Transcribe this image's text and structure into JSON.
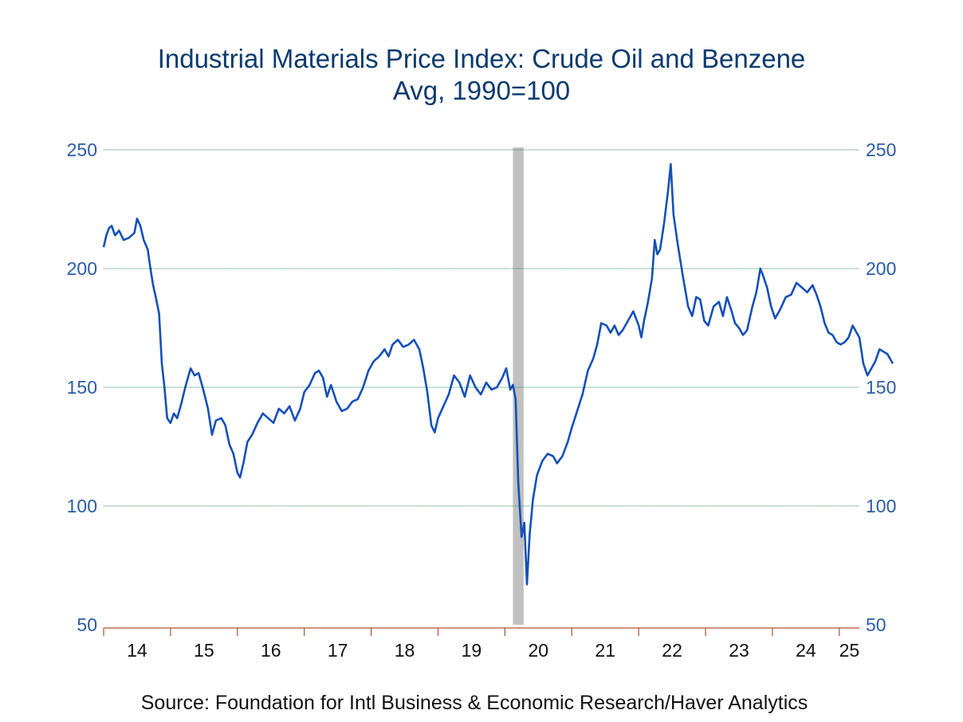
{
  "chart_data": {
    "type": "line",
    "title": "Industrial Materials Price Index: Crude Oil and Benzene",
    "subtitle": "Avg, 1990=100",
    "source": "Source:  Foundation for Intl Business & Economic Research/Haver Analytics",
    "xlabel": "",
    "ylabel": "",
    "xlim": [
      2014.0,
      2025.3
    ],
    "ylim": [
      50,
      250
    ],
    "y_ticks": [
      50,
      100,
      150,
      200,
      250
    ],
    "y_tick_labels": [
      "50",
      "100",
      "150",
      "200",
      "250"
    ],
    "x_tick_labels": [
      "14",
      "15",
      "16",
      "17",
      "18",
      "19",
      "20",
      "21",
      "22",
      "23",
      "24",
      "25"
    ],
    "grid": "horizontal dotted, green",
    "dual_y_axis": true,
    "recession_shading": [
      {
        "start": 2020.12,
        "end": 2020.28
      }
    ],
    "colors": {
      "line": "#1450b8",
      "grid": "#2e8b57",
      "axis": "#b5502a",
      "shade": "#c0c0c0",
      "title": "#0b3a6e",
      "ticks": "#2a5ca8"
    },
    "series": [
      {
        "points": [
          [
            2014.0,
            209
          ],
          [
            2014.04,
            214
          ],
          [
            2014.08,
            217
          ],
          [
            2014.12,
            218
          ],
          [
            2014.17,
            214
          ],
          [
            2014.23,
            216
          ],
          [
            2014.3,
            212
          ],
          [
            2014.38,
            213
          ],
          [
            2014.46,
            215
          ],
          [
            2014.5,
            221
          ],
          [
            2014.55,
            218
          ],
          [
            2014.6,
            212
          ],
          [
            2014.66,
            208
          ],
          [
            2014.7,
            200
          ],
          [
            2014.74,
            193
          ],
          [
            2014.78,
            188
          ],
          [
            2014.83,
            181
          ],
          [
            2014.87,
            160
          ],
          [
            2014.91,
            150
          ],
          [
            2014.95,
            137
          ],
          [
            2015.0,
            135
          ],
          [
            2015.05,
            139
          ],
          [
            2015.1,
            137
          ],
          [
            2015.16,
            143
          ],
          [
            2015.22,
            150
          ],
          [
            2015.3,
            158
          ],
          [
            2015.36,
            155
          ],
          [
            2015.42,
            156
          ],
          [
            2015.48,
            150
          ],
          [
            2015.56,
            141
          ],
          [
            2015.62,
            130
          ],
          [
            2015.68,
            136
          ],
          [
            2015.76,
            137
          ],
          [
            2015.82,
            134
          ],
          [
            2015.88,
            126
          ],
          [
            2015.94,
            122
          ],
          [
            2016.0,
            114
          ],
          [
            2016.04,
            112
          ],
          [
            2016.09,
            118
          ],
          [
            2016.15,
            127
          ],
          [
            2016.22,
            130
          ],
          [
            2016.3,
            135
          ],
          [
            2016.38,
            139
          ],
          [
            2016.46,
            137
          ],
          [
            2016.54,
            135
          ],
          [
            2016.62,
            141
          ],
          [
            2016.7,
            139
          ],
          [
            2016.78,
            142
          ],
          [
            2016.86,
            136
          ],
          [
            2016.94,
            141
          ],
          [
            2017.0,
            148
          ],
          [
            2017.08,
            151
          ],
          [
            2017.16,
            156
          ],
          [
            2017.22,
            157
          ],
          [
            2017.28,
            154
          ],
          [
            2017.34,
            146
          ],
          [
            2017.4,
            151
          ],
          [
            2017.48,
            144
          ],
          [
            2017.56,
            140
          ],
          [
            2017.64,
            141
          ],
          [
            2017.72,
            144
          ],
          [
            2017.8,
            145
          ],
          [
            2017.88,
            150
          ],
          [
            2017.96,
            157
          ],
          [
            2018.04,
            161
          ],
          [
            2018.12,
            163
          ],
          [
            2018.2,
            166
          ],
          [
            2018.26,
            163
          ],
          [
            2018.32,
            168
          ],
          [
            2018.4,
            170
          ],
          [
            2018.48,
            167
          ],
          [
            2018.56,
            168
          ],
          [
            2018.64,
            170
          ],
          [
            2018.72,
            166
          ],
          [
            2018.78,
            158
          ],
          [
            2018.84,
            148
          ],
          [
            2018.9,
            134
          ],
          [
            2018.95,
            131
          ],
          [
            2019.0,
            137
          ],
          [
            2019.08,
            142
          ],
          [
            2019.16,
            147
          ],
          [
            2019.24,
            155
          ],
          [
            2019.32,
            152
          ],
          [
            2019.4,
            146
          ],
          [
            2019.48,
            155
          ],
          [
            2019.56,
            150
          ],
          [
            2019.64,
            147
          ],
          [
            2019.72,
            152
          ],
          [
            2019.8,
            149
          ],
          [
            2019.88,
            150
          ],
          [
            2019.96,
            154
          ],
          [
            2020.02,
            158
          ],
          [
            2020.08,
            149
          ],
          [
            2020.12,
            151
          ],
          [
            2020.16,
            145
          ],
          [
            2020.2,
            110
          ],
          [
            2020.25,
            87
          ],
          [
            2020.29,
            93
          ],
          [
            2020.33,
            67
          ],
          [
            2020.37,
            88
          ],
          [
            2020.42,
            103
          ],
          [
            2020.48,
            113
          ],
          [
            2020.56,
            119
          ],
          [
            2020.64,
            122
          ],
          [
            2020.72,
            121
          ],
          [
            2020.78,
            118
          ],
          [
            2020.86,
            121
          ],
          [
            2020.94,
            127
          ],
          [
            2021.0,
            133
          ],
          [
            2021.08,
            140
          ],
          [
            2021.16,
            147
          ],
          [
            2021.24,
            157
          ],
          [
            2021.32,
            162
          ],
          [
            2021.38,
            168
          ],
          [
            2021.44,
            177
          ],
          [
            2021.52,
            176
          ],
          [
            2021.58,
            173
          ],
          [
            2021.64,
            176
          ],
          [
            2021.7,
            172
          ],
          [
            2021.76,
            174
          ],
          [
            2021.84,
            178
          ],
          [
            2021.92,
            182
          ],
          [
            2022.0,
            176
          ],
          [
            2022.04,
            171
          ],
          [
            2022.08,
            178
          ],
          [
            2022.14,
            186
          ],
          [
            2022.2,
            196
          ],
          [
            2022.24,
            212
          ],
          [
            2022.28,
            206
          ],
          [
            2022.32,
            208
          ],
          [
            2022.38,
            219
          ],
          [
            2022.44,
            233
          ],
          [
            2022.48,
            244
          ],
          [
            2022.52,
            223
          ],
          [
            2022.58,
            211
          ],
          [
            2022.66,
            197
          ],
          [
            2022.74,
            184
          ],
          [
            2022.8,
            180
          ],
          [
            2022.86,
            188
          ],
          [
            2022.92,
            187
          ],
          [
            2022.98,
            178
          ],
          [
            2023.04,
            176
          ],
          [
            2023.12,
            184
          ],
          [
            2023.2,
            186
          ],
          [
            2023.26,
            180
          ],
          [
            2023.32,
            188
          ],
          [
            2023.38,
            183
          ],
          [
            2023.44,
            177
          ],
          [
            2023.5,
            175
          ],
          [
            2023.56,
            172
          ],
          [
            2023.62,
            174
          ],
          [
            2023.7,
            184
          ],
          [
            2023.76,
            190
          ],
          [
            2023.82,
            200
          ],
          [
            2023.86,
            197
          ],
          [
            2023.92,
            192
          ],
          [
            2023.98,
            184
          ],
          [
            2024.04,
            179
          ],
          [
            2024.12,
            183
          ],
          [
            2024.2,
            188
          ],
          [
            2024.28,
            189
          ],
          [
            2024.36,
            194
          ],
          [
            2024.44,
            192
          ],
          [
            2024.52,
            190
          ],
          [
            2024.6,
            193
          ],
          [
            2024.66,
            189
          ],
          [
            2024.72,
            184
          ],
          [
            2024.78,
            177
          ],
          [
            2024.84,
            173
          ],
          [
            2024.9,
            172
          ],
          [
            2024.96,
            169
          ],
          [
            2025.02,
            168
          ],
          [
            2025.08,
            169
          ],
          [
            2025.14,
            171
          ],
          [
            2025.2,
            176
          ],
          [
            2025.26,
            173
          ],
          [
            2025.3,
            171
          ],
          [
            2025.36,
            160
          ],
          [
            2025.42,
            155
          ],
          [
            2025.48,
            158
          ],
          [
            2025.54,
            161
          ],
          [
            2025.6,
            166
          ],
          [
            2025.66,
            165
          ],
          [
            2025.72,
            164
          ],
          [
            2025.8,
            160
          ]
        ]
      }
    ]
  }
}
